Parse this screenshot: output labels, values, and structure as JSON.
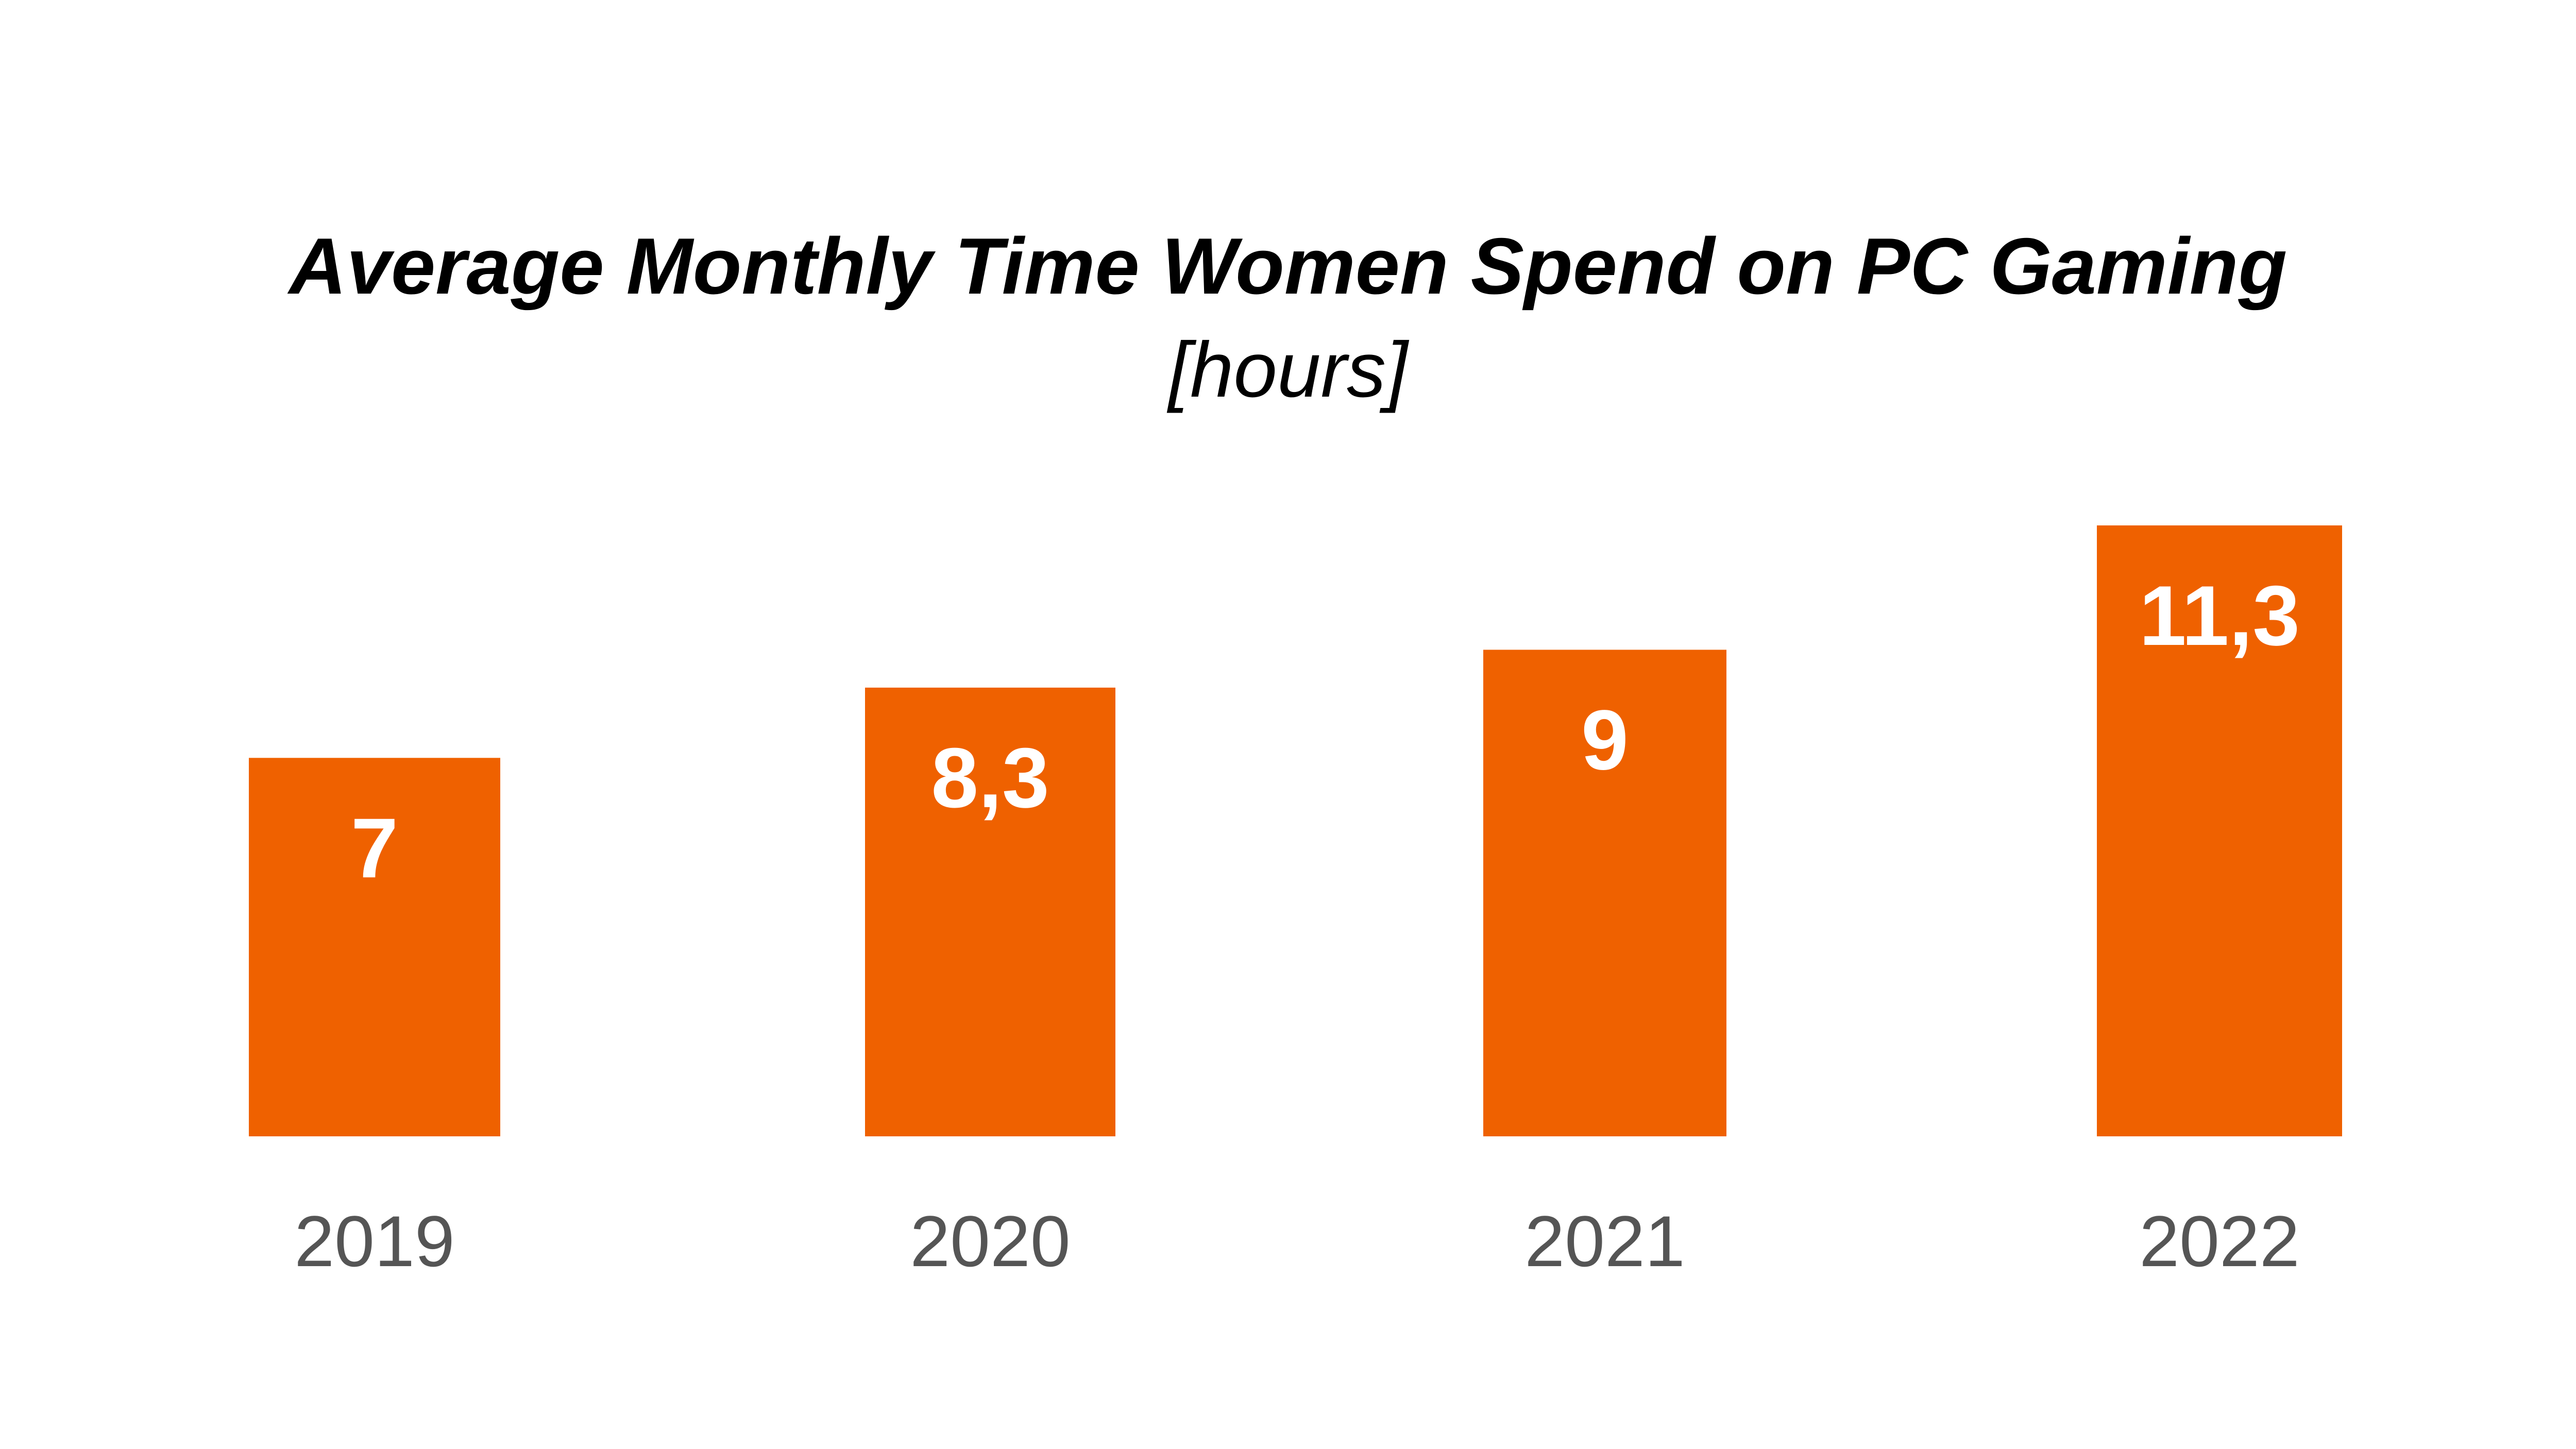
{
  "colors": {
    "bar": "#EF6100",
    "value_label": "#FFFFFF",
    "tick_label": "#555555",
    "title": "#000000",
    "background": "#FFFFFF"
  },
  "chart_data": {
    "type": "bar",
    "title": "Average Monthly Time Women Spend on PC Gaming",
    "subtitle": "[hours]",
    "xlabel": "",
    "ylabel": "",
    "categories": [
      "2019",
      "2020",
      "2021",
      "2022"
    ],
    "values": [
      7,
      8.3,
      9,
      11.3
    ],
    "value_labels": [
      "7",
      "8,3",
      "9",
      "11,3"
    ],
    "ylim": [
      0,
      11.3
    ],
    "grid": false,
    "legend": "none"
  }
}
